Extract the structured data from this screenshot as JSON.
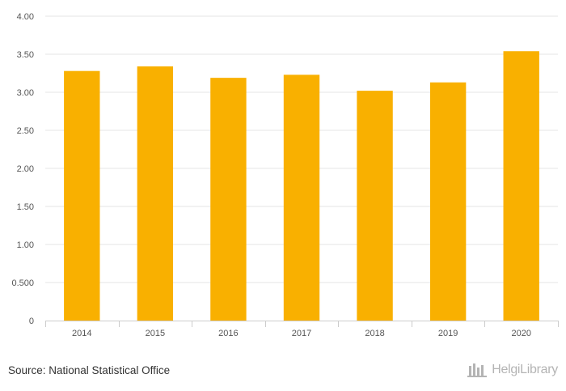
{
  "chart_data": {
    "type": "bar",
    "categories": [
      "2014",
      "2015",
      "2016",
      "2017",
      "2018",
      "2019",
      "2020"
    ],
    "values": [
      3.28,
      3.34,
      3.19,
      3.23,
      3.02,
      3.13,
      3.54
    ],
    "ylim": [
      0,
      4
    ],
    "yticks": [
      0,
      0.5,
      1,
      1.5,
      2,
      2.5,
      3,
      3.5,
      4
    ],
    "ytick_labels": [
      "0",
      "0.500",
      "1.00",
      "1.50",
      "2.00",
      "2.50",
      "3.00",
      "3.50",
      "4.00"
    ],
    "grid": true,
    "title": "",
    "xlabel": "",
    "ylabel": "",
    "bar_color": "#f9b000",
    "grid_color": "#e6e6e6"
  },
  "footer": {
    "source": "Source: National Statistical Office",
    "brand": "HelgiLibrary",
    "brand_icon": "helgi-library-logo-icon"
  }
}
